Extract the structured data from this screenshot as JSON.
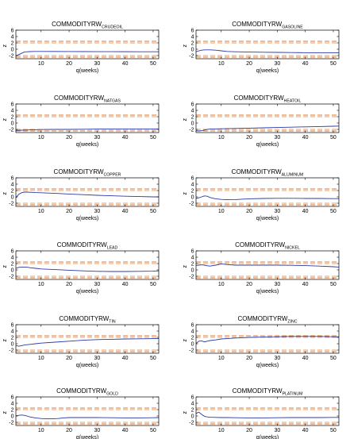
{
  "chart_data": [
    {
      "type": "line",
      "title": "COMMODITYRW",
      "subscript": "CRUDEOIL",
      "xlabel": "q(weeks)",
      "ylabel": "z",
      "xlim": [
        1,
        52
      ],
      "ylim": [
        -3,
        6
      ],
      "xticks": [
        10,
        20,
        30,
        40,
        50
      ],
      "yticks": [
        -2,
        0,
        2,
        4,
        6
      ],
      "bands": [
        -2.5,
        -2,
        2,
        2.5
      ],
      "series": [
        {
          "x": [
            1,
            2,
            3,
            4,
            5,
            6,
            8,
            10,
            15,
            20,
            25,
            30,
            35,
            40,
            45,
            50,
            52
          ],
          "y": [
            -2.1,
            -1.7,
            -1.3,
            -0.9,
            -0.8,
            -0.75,
            -0.7,
            -0.7,
            -0.72,
            -0.74,
            -0.75,
            -0.76,
            -0.77,
            -0.78,
            -0.79,
            -0.8,
            -0.8
          ]
        }
      ]
    },
    {
      "type": "line",
      "title": "COMMODITYRW",
      "subscript": "GASOLINE",
      "xlabel": "q(weeks)",
      "ylabel": "z",
      "xlim": [
        1,
        52
      ],
      "ylim": [
        -3,
        6
      ],
      "xticks": [
        10,
        20,
        30,
        40,
        50
      ],
      "yticks": [
        -2,
        0,
        2,
        4,
        6
      ],
      "bands": [
        -2.5,
        -2,
        2,
        2.5
      ],
      "series": [
        {
          "x": [
            1,
            2,
            3,
            4,
            6,
            8,
            10,
            12,
            15,
            20,
            25,
            30,
            35,
            40,
            45,
            50,
            52
          ],
          "y": [
            -0.8,
            -0.5,
            -0.3,
            -0.2,
            -0.2,
            -0.3,
            -0.5,
            -0.7,
            -0.8,
            -0.9,
            -0.95,
            -1,
            -1.05,
            -1.1,
            -1.1,
            -1.1,
            -1.1
          ]
        }
      ]
    },
    {
      "type": "line",
      "title": "COMMODITYRW",
      "subscript": "NATGAS",
      "xlabel": "q(weeks)",
      "ylabel": "z",
      "xlim": [
        1,
        52
      ],
      "ylim": [
        -3,
        6
      ],
      "xticks": [
        10,
        20,
        30,
        40,
        50
      ],
      "yticks": [
        -2,
        0,
        2,
        4,
        6
      ],
      "bands": [
        -2.5,
        -2,
        2,
        2.5
      ],
      "series": [
        {
          "x": [
            1,
            2,
            3,
            4,
            5,
            6,
            8,
            10,
            15,
            20,
            25,
            30,
            35,
            40,
            45,
            50,
            52
          ],
          "y": [
            -2.3,
            -2.3,
            -2.25,
            -2.2,
            -2.2,
            -2.15,
            -2.1,
            -2.05,
            -2,
            -2,
            -1.95,
            -1.9,
            -1.9,
            -1.9,
            -1.9,
            -1.9,
            -1.9
          ]
        }
      ]
    },
    {
      "type": "line",
      "title": "COMMODITYRW",
      "subscript": "HEATOIL",
      "xlabel": "q(weeks)",
      "ylabel": "z",
      "xlim": [
        1,
        52
      ],
      "ylim": [
        -3,
        6
      ],
      "xticks": [
        10,
        20,
        30,
        40,
        50
      ],
      "yticks": [
        -2,
        0,
        2,
        4,
        6
      ],
      "bands": [
        -2.5,
        -2,
        2,
        2.5
      ],
      "series": [
        {
          "x": [
            1,
            2,
            3,
            4,
            5,
            6,
            8,
            10,
            15,
            20,
            25,
            30,
            35,
            40,
            45,
            50,
            52
          ],
          "y": [
            -2.4,
            -2.5,
            -2.4,
            -2.2,
            -2,
            -1.9,
            -1.85,
            -1.8,
            -1.7,
            -1.6,
            -1.5,
            -1.4,
            -1.3,
            -1.2,
            -1.1,
            -1,
            -0.95
          ]
        }
      ]
    },
    {
      "type": "line",
      "title": "COMMODITYRW",
      "subscript": "COPPER",
      "xlabel": "q(weeks)",
      "ylabel": "z",
      "xlim": [
        1,
        52
      ],
      "ylim": [
        -3,
        6
      ],
      "xticks": [
        10,
        20,
        30,
        40,
        50
      ],
      "yticks": [
        -2,
        0,
        2,
        4,
        6
      ],
      "bands": [
        -2.5,
        -2,
        2,
        2.5
      ],
      "series": [
        {
          "x": [
            1,
            2,
            3,
            4,
            5,
            6,
            8,
            10,
            15,
            20,
            25,
            30,
            35,
            40,
            45,
            50,
            52
          ],
          "y": [
            -0.3,
            0.8,
            1.3,
            1.5,
            1.5,
            1.45,
            1.35,
            1.3,
            1.1,
            0.9,
            0.7,
            0.5,
            0.35,
            0.2,
            0.1,
            0,
            0
          ]
        }
      ]
    },
    {
      "type": "line",
      "title": "COMMODITYRW",
      "subscript": "ALUMINUM",
      "xlabel": "q(weeks)",
      "ylabel": "z",
      "xlim": [
        1,
        52
      ],
      "ylim": [
        -3,
        6
      ],
      "xticks": [
        10,
        20,
        30,
        40,
        50
      ],
      "yticks": [
        -2,
        0,
        2,
        4,
        6
      ],
      "bands": [
        -2.5,
        -2,
        2,
        2.5
      ],
      "series": [
        {
          "x": [
            1,
            2,
            3,
            4,
            5,
            6,
            8,
            10,
            12,
            15,
            18,
            20,
            25,
            30,
            35,
            40,
            45,
            50,
            52
          ],
          "y": [
            -0.5,
            -0.3,
            0,
            0.3,
            0.2,
            -0.2,
            -0.6,
            -0.8,
            -0.9,
            -0.85,
            -0.7,
            -0.6,
            -0.5,
            -0.45,
            -0.45,
            -0.5,
            -0.5,
            -0.55,
            -0.55
          ]
        }
      ]
    },
    {
      "type": "line",
      "title": "COMMODITYRW",
      "subscript": "LEAD",
      "xlabel": "q(weeks)",
      "ylabel": "z",
      "xlim": [
        1,
        52
      ],
      "ylim": [
        -3,
        6
      ],
      "xticks": [
        10,
        20,
        30,
        40,
        50
      ],
      "yticks": [
        -2,
        0,
        2,
        4,
        6
      ],
      "bands": [
        -2.5,
        -2,
        2,
        2.5
      ],
      "series": [
        {
          "x": [
            1,
            2,
            3,
            4,
            5,
            6,
            8,
            10,
            15,
            20,
            25,
            30,
            35,
            40,
            45,
            50,
            52
          ],
          "y": [
            0.5,
            0.8,
            0.9,
            0.9,
            0.85,
            0.7,
            0.5,
            0.3,
            0.1,
            -0.1,
            -0.3,
            -0.45,
            -0.5,
            -0.5,
            -0.45,
            -0.4,
            -0.3
          ]
        }
      ]
    },
    {
      "type": "line",
      "title": "COMMODITYRW",
      "subscript": "NICKEL",
      "xlabel": "q(weeks)",
      "ylabel": "z",
      "xlim": [
        1,
        52
      ],
      "ylim": [
        -3,
        6
      ],
      "xticks": [
        10,
        20,
        30,
        40,
        50
      ],
      "yticks": [
        -2,
        0,
        2,
        4,
        6
      ],
      "bands": [
        -2.5,
        -2,
        2,
        2.5
      ],
      "series": [
        {
          "x": [
            1,
            2,
            3,
            4,
            5,
            6,
            8,
            10,
            12,
            15,
            20,
            25,
            30,
            35,
            40,
            45,
            50,
            52
          ],
          "y": [
            1.4,
            1.5,
            1.6,
            1.5,
            1.3,
            1.2,
            1.5,
            1.9,
            1.7,
            1.5,
            1.5,
            1.5,
            1.5,
            1.45,
            1.35,
            1.2,
            1,
            0.9
          ]
        }
      ]
    },
    {
      "type": "line",
      "title": "COMMODITYRW",
      "subscript": "TIN",
      "xlabel": "q(weeks)",
      "ylabel": "z",
      "xlim": [
        1,
        52
      ],
      "ylim": [
        -3,
        6
      ],
      "xticks": [
        10,
        20,
        30,
        40,
        50
      ],
      "yticks": [
        -2,
        0,
        2,
        4,
        6
      ],
      "bands": [
        -2.5,
        -2,
        2,
        2.5
      ],
      "series": [
        {
          "x": [
            1,
            2,
            3,
            4,
            5,
            6,
            8,
            10,
            15,
            20,
            25,
            30,
            35,
            40,
            45,
            50,
            52
          ],
          "y": [
            -0.5,
            -0.8,
            -0.6,
            -0.4,
            -0.3,
            -0.2,
            0,
            0.2,
            0.5,
            0.8,
            1.1,
            1.3,
            1.4,
            1.5,
            1.55,
            1.6,
            1.6
          ]
        }
      ]
    },
    {
      "type": "line",
      "title": "COMMODITYRW",
      "subscript": "ZINC",
      "xlabel": "q(weeks)",
      "ylabel": "z",
      "xlim": [
        1,
        52
      ],
      "ylim": [
        -3,
        6
      ],
      "xticks": [
        10,
        20,
        30,
        40,
        50
      ],
      "yticks": [
        -2,
        0,
        2,
        4,
        6
      ],
      "bands": [
        -2.5,
        -2,
        2,
        2.5
      ],
      "series": [
        {
          "x": [
            1,
            2,
            3,
            4,
            5,
            6,
            8,
            10,
            12,
            15,
            20,
            25,
            30,
            35,
            40,
            45,
            50,
            52
          ],
          "y": [
            0.1,
            0.8,
            0.9,
            0.6,
            0.8,
            1.0,
            1.2,
            1.5,
            1.6,
            1.8,
            2,
            2.1,
            2.2,
            2.3,
            2.3,
            2.3,
            2.2,
            2.2
          ]
        }
      ]
    },
    {
      "type": "line",
      "title": "COMMODITYRW",
      "subscript": "GOLD",
      "xlabel": "q(weeks)",
      "ylabel": "z",
      "xlim": [
        1,
        52
      ],
      "ylim": [
        -3,
        6
      ],
      "xticks": [
        10,
        20,
        30,
        40,
        50
      ],
      "yticks": [
        -2,
        0,
        2,
        4,
        6
      ],
      "bands": [
        -2.5,
        -2,
        2,
        2.5
      ],
      "series": [
        {
          "x": [
            1,
            2,
            3,
            4,
            5,
            6,
            8,
            10,
            12,
            14,
            16,
            18,
            20,
            25,
            30,
            35,
            40,
            45,
            50,
            52
          ],
          "y": [
            0,
            0.2,
            0.3,
            0.2,
            0,
            -0.3,
            -0.6,
            -0.8,
            -0.9,
            -0.9,
            -0.8,
            -0.6,
            -0.5,
            -0.5,
            -0.5,
            -0.55,
            -0.6,
            -0.6,
            -0.55,
            -0.5
          ]
        }
      ]
    },
    {
      "type": "line",
      "title": "COMMODITYRW",
      "subscript": "PLATINUM",
      "xlabel": "q(weeks)",
      "ylabel": "z",
      "xlim": [
        1,
        52
      ],
      "ylim": [
        -3,
        6
      ],
      "xticks": [
        10,
        20,
        30,
        40,
        50
      ],
      "yticks": [
        -2,
        0,
        2,
        4,
        6
      ],
      "bands": [
        -2.5,
        -2,
        2,
        2.5
      ],
      "series": [
        {
          "x": [
            1,
            2,
            3,
            4,
            5,
            6,
            8,
            10,
            12,
            15,
            20,
            25,
            30,
            35,
            40,
            45,
            50,
            52
          ],
          "y": [
            0.8,
            1.2,
            0.5,
            -0.1,
            -0.3,
            -0.4,
            -0.45,
            -0.5,
            -0.5,
            -0.55,
            -0.6,
            -0.6,
            -0.55,
            -0.5,
            -0.5,
            -0.5,
            -0.45,
            -0.45
          ]
        }
      ]
    }
  ],
  "colors": {
    "series": "#2b3aa8",
    "band_outer": "#e07a3a",
    "band_inner": "#e8a060",
    "axis": "#000000"
  }
}
